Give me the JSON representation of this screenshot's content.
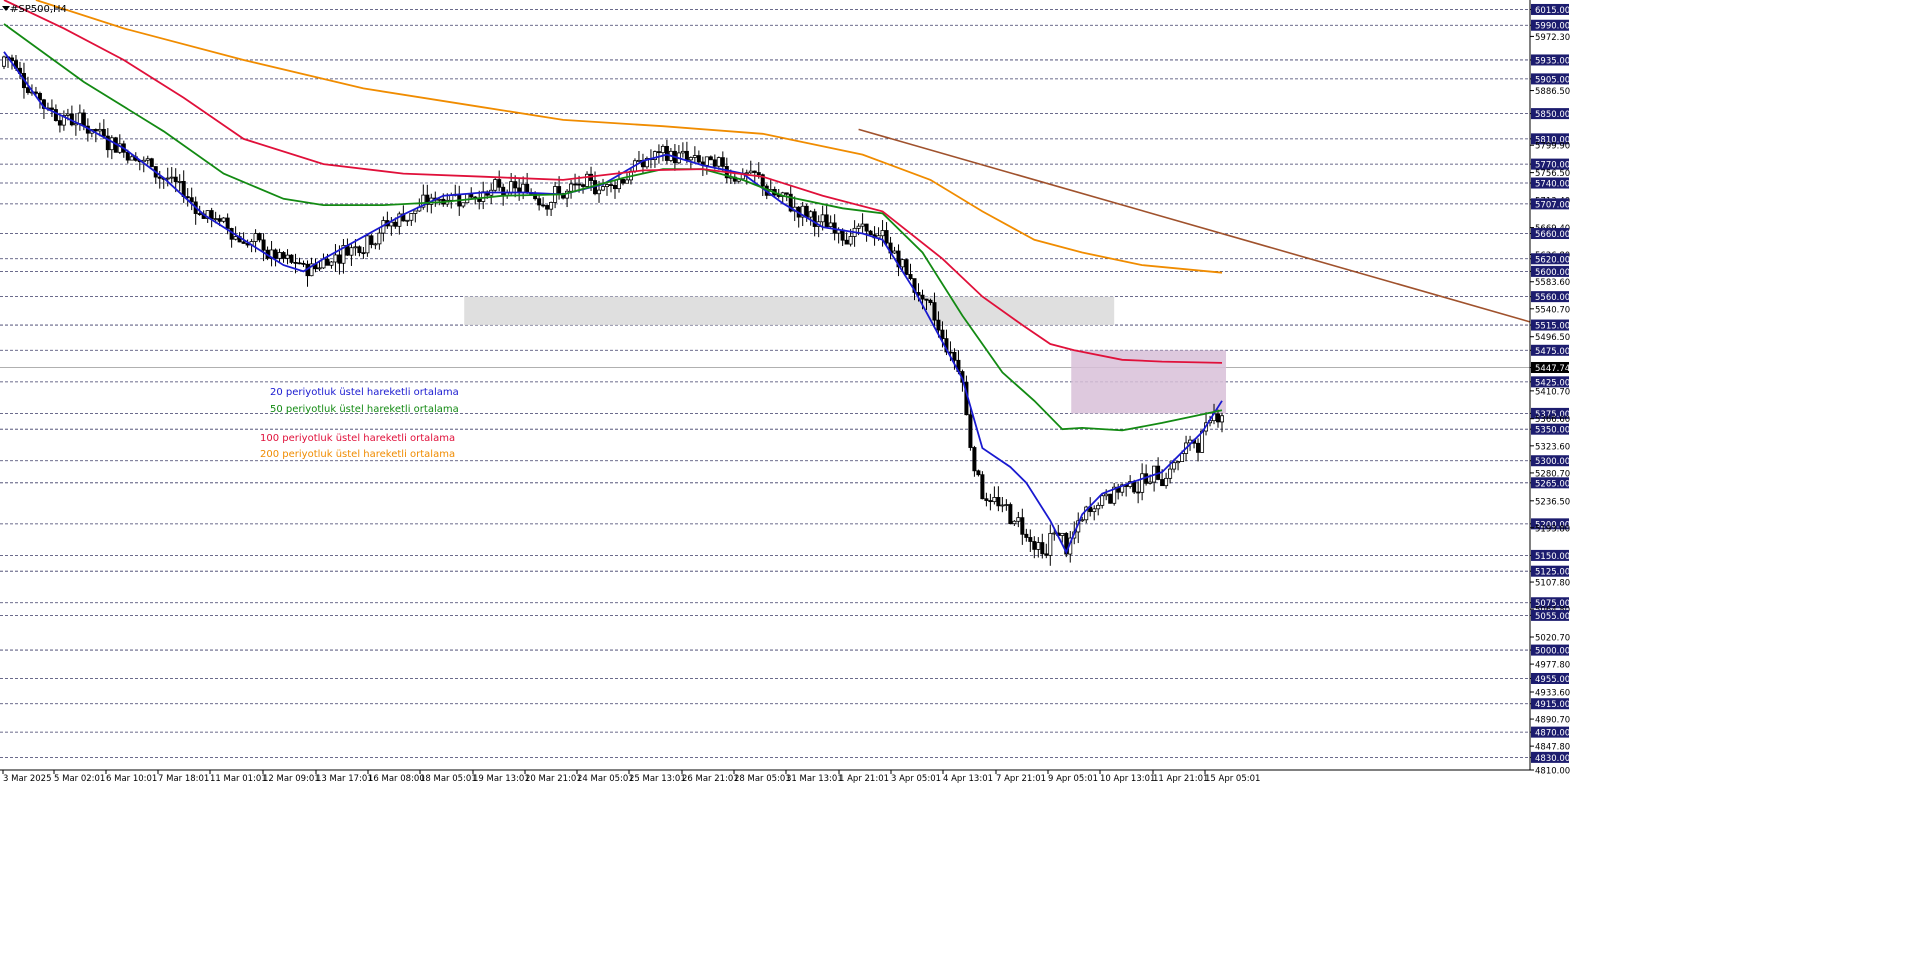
{
  "symbol": "#SP500,H4",
  "chart_data": {
    "type": "candlestick",
    "title": "#SP500,H4",
    "ylim": [
      4810,
      6030
    ],
    "current_price": 5447.74,
    "horizontal_levels": [
      6015,
      5990,
      5935,
      5905,
      5850,
      5810,
      5770,
      5740,
      5707,
      5660,
      5620,
      5600,
      5560,
      5515,
      5475,
      5425,
      5375,
      5350,
      5300,
      5265,
      5200,
      5150,
      5125,
      5075,
      5055,
      5000,
      4955,
      4915,
      4870,
      4830
    ],
    "y_ticks": [
      "6015.00",
      "5990.00",
      "5972.30",
      "5935.00",
      "5905.00",
      "5886.50",
      "5850.00",
      "5810.00",
      "5799.90",
      "5770.00",
      "5756.50",
      "5740.00",
      "5713.40",
      "5707.00",
      "5669.40",
      "5660.00",
      "5626.80",
      "5620.00",
      "5600.00",
      "5583.60",
      "5560.00",
      "5540.70",
      "5515.00",
      "5496.50",
      "5475.00",
      "5447.74",
      "5425.00",
      "5410.70",
      "5375.00",
      "5366.60",
      "5350.00",
      "5323.60",
      "5300.00",
      "5280.70",
      "5265.00",
      "5236.50",
      "5200.00",
      "5193.80",
      "5150.00",
      "5125.00",
      "5107.80",
      "5075.00",
      "5064.80",
      "5055.00",
      "5020.70",
      "5000.00",
      "4977.80",
      "4955.00",
      "4933.60",
      "4915.00",
      "4890.70",
      "4870.00",
      "4847.80",
      "4830.00",
      "4810.00"
    ],
    "x_labels": [
      "3 Mar 2025",
      "5 Mar 02:01",
      "6 Mar 10:01",
      "7 Mar 18:01",
      "11 Mar 01:01",
      "12 Mar 09:01",
      "13 Mar 17:01",
      "16 Mar 08:00",
      "18 Mar 05:01",
      "19 Mar 13:01",
      "20 Mar 21:01",
      "24 Mar 05:01",
      "25 Mar 13:01",
      "26 Mar 21:01",
      "28 Mar 05:01",
      "31 Mar 13:01",
      "1 Apr 21:01",
      "3 Apr 05:01",
      "4 Apr 13:01",
      "7 Apr 21:01",
      "9 Apr 05:01",
      "10 Apr 13:01",
      "11 Apr 21:01",
      "15 Apr 05:01"
    ],
    "legend": [
      {
        "label": "20 periyotluk üstel hareketli ortalama",
        "color": "#1a1ad0"
      },
      {
        "label": "50 periyotluk üstel hareketli ortalama",
        "color": "#138a13"
      },
      {
        "label": "100 periyotluk üstel hareketli ortalama",
        "color": "#e0103a"
      },
      {
        "label": "200 periyotluk üstel hareketli ortalama",
        "color": "#f08c00"
      }
    ],
    "zones": [
      {
        "name": "resistance-zone",
        "from": "11 Mar 01:01",
        "to": "11 Apr 21:01",
        "ylim": [
          5515,
          5560
        ],
        "color": "#d9d9d9"
      },
      {
        "name": "consolidation-zone",
        "from": "10 Apr 13:01",
        "to": "15 Apr 05:01",
        "ylim": [
          5375,
          5475
        ],
        "color": "#d8bfd8"
      }
    ],
    "trendline": {
      "from": [
        "25 Mar 13:01",
        5825
      ],
      "to": [
        "15 Apr 05:01",
        5520
      ],
      "color": "#a0522d"
    },
    "series": [
      {
        "name": "EMA20",
        "color": "#1a1ad0",
        "values": [
          [
            0,
            5948
          ],
          [
            10,
            5860
          ],
          [
            20,
            5830
          ],
          [
            30,
            5795
          ],
          [
            40,
            5748
          ],
          [
            50,
            5690
          ],
          [
            60,
            5650
          ],
          [
            70,
            5610
          ],
          [
            75,
            5600
          ],
          [
            80,
            5620
          ],
          [
            90,
            5655
          ],
          [
            100,
            5690
          ],
          [
            110,
            5720
          ],
          [
            120,
            5725
          ],
          [
            130,
            5725
          ],
          [
            140,
            5722
          ],
          [
            150,
            5738
          ],
          [
            160,
            5775
          ],
          [
            166,
            5785
          ],
          [
            175,
            5768
          ],
          [
            185,
            5755
          ],
          [
            195,
            5708
          ],
          [
            205,
            5670
          ],
          [
            215,
            5660
          ],
          [
            220,
            5650
          ],
          [
            228,
            5570
          ],
          [
            240,
            5430
          ],
          [
            245,
            5320
          ],
          [
            252,
            5290
          ],
          [
            256,
            5265
          ],
          [
            262,
            5205
          ],
          [
            266,
            5155
          ],
          [
            270,
            5215
          ],
          [
            275,
            5248
          ],
          [
            282,
            5265
          ],
          [
            290,
            5282
          ],
          [
            300,
            5345
          ],
          [
            305,
            5395
          ]
        ]
      },
      {
        "name": "EMA50",
        "color": "#138a13",
        "values": [
          [
            0,
            5992
          ],
          [
            20,
            5900
          ],
          [
            40,
            5822
          ],
          [
            55,
            5755
          ],
          [
            70,
            5715
          ],
          [
            80,
            5705
          ],
          [
            95,
            5705
          ],
          [
            110,
            5710
          ],
          [
            125,
            5720
          ],
          [
            140,
            5722
          ],
          [
            155,
            5748
          ],
          [
            165,
            5762
          ],
          [
            175,
            5762
          ],
          [
            185,
            5745
          ],
          [
            195,
            5720
          ],
          [
            210,
            5700
          ],
          [
            220,
            5692
          ],
          [
            230,
            5630
          ],
          [
            240,
            5530
          ],
          [
            250,
            5440
          ],
          [
            258,
            5395
          ],
          [
            265,
            5350
          ],
          [
            270,
            5352
          ],
          [
            280,
            5348
          ],
          [
            290,
            5360
          ],
          [
            305,
            5380
          ]
        ]
      },
      {
        "name": "EMA100",
        "color": "#e0103a",
        "values": [
          [
            0,
            6030
          ],
          [
            15,
            5985
          ],
          [
            30,
            5935
          ],
          [
            45,
            5875
          ],
          [
            60,
            5810
          ],
          [
            80,
            5770
          ],
          [
            100,
            5755
          ],
          [
            120,
            5750
          ],
          [
            140,
            5745
          ],
          [
            160,
            5760
          ],
          [
            175,
            5762
          ],
          [
            190,
            5750
          ],
          [
            205,
            5720
          ],
          [
            220,
            5695
          ],
          [
            235,
            5620
          ],
          [
            245,
            5560
          ],
          [
            255,
            5515
          ],
          [
            262,
            5485
          ],
          [
            268,
            5475
          ],
          [
            280,
            5460
          ],
          [
            290,
            5457
          ],
          [
            305,
            5455
          ]
        ]
      },
      {
        "name": "EMA200",
        "color": "#f08c00",
        "values": [
          [
            8,
            6030
          ],
          [
            30,
            5985
          ],
          [
            60,
            5935
          ],
          [
            90,
            5890
          ],
          [
            120,
            5860
          ],
          [
            140,
            5840
          ],
          [
            165,
            5830
          ],
          [
            190,
            5818
          ],
          [
            215,
            5785
          ],
          [
            232,
            5745
          ],
          [
            245,
            5695
          ],
          [
            258,
            5650
          ],
          [
            270,
            5630
          ],
          [
            285,
            5610
          ],
          [
            305,
            5598
          ]
        ]
      }
    ]
  }
}
